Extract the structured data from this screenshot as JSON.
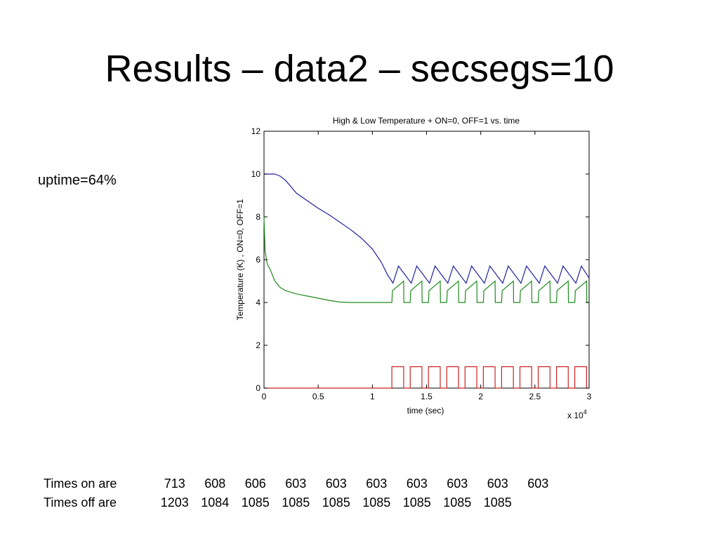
{
  "slide": {
    "title": "Results – data2 – secsegs=10",
    "uptime": "uptime=64%"
  },
  "times": {
    "on_label": "Times on are",
    "on_values": [
      "713",
      "608",
      "606",
      "603",
      "603",
      "603",
      "603",
      "603",
      "603",
      "603"
    ],
    "off_label": "Times off are",
    "off_values": [
      "1203",
      "1084",
      "1085",
      "1085",
      "1085",
      "1085",
      "1085",
      "1085",
      "1085"
    ]
  },
  "chart_data": {
    "type": "line",
    "title": "High & Low Temperature + ON=0, OFF=1  vs. time",
    "xlabel": "time (sec)",
    "ylabel": "Temperature (K) , ON=0, OFF=1",
    "x_multiplier": "x 10",
    "x_multiplier_exp": "4",
    "xlim": [
      0,
      3
    ],
    "ylim": [
      0,
      12
    ],
    "xticks": [
      "0",
      "0.5",
      "1",
      "1.5",
      "2",
      "2.5",
      "3"
    ],
    "yticks": [
      "0",
      "2",
      "4",
      "6",
      "8",
      "10",
      "12"
    ],
    "grid": false,
    "series": [
      {
        "color": "#1f1fa0",
        "x": [
          0,
          0.1,
          0.15,
          0.2,
          0.3,
          0.5,
          0.6,
          0.8,
          0.9,
          1.0,
          1.08,
          1.14,
          1.19
        ],
        "y": [
          10,
          10,
          9.9,
          9.7,
          9.1,
          8.4,
          8.1,
          7.4,
          7.0,
          6.5,
          5.9,
          5.3,
          4.9
        ],
        "sawtooth": {
          "start": 1.19,
          "end": 3.0,
          "period": 0.1688,
          "low": 4.9,
          "high": 5.7
        }
      },
      {
        "color": "#1f8a1f",
        "x": [
          0,
          0.01,
          0.03,
          0.06,
          0.1,
          0.15,
          0.2,
          0.3,
          0.4,
          0.5,
          0.6,
          0.7,
          0.8,
          1.18
        ],
        "y": [
          8.0,
          6.4,
          5.8,
          5.5,
          5.0,
          4.7,
          4.55,
          4.4,
          4.3,
          4.2,
          4.1,
          4.02,
          4.0,
          4.0
        ],
        "sawtooth": {
          "start": 1.18,
          "end": 3.0,
          "period": 0.1688,
          "on_fraction": 0.357,
          "low": 4.0,
          "high": 5.0
        }
      },
      {
        "color": "#cc2222",
        "x": [
          0,
          1.18
        ],
        "y": [
          0,
          0
        ],
        "square": {
          "start": 1.18,
          "end": 3.0,
          "period": 0.1688,
          "on_fraction": 0.357,
          "low": 0,
          "high": 1
        }
      }
    ]
  }
}
